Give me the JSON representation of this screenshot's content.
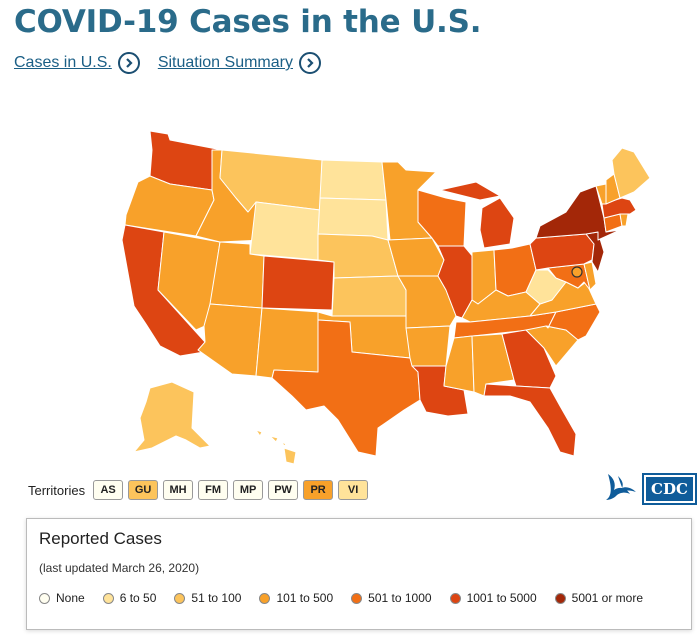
{
  "header": {
    "title": "COVID-19 Cases in the U.S.",
    "links": [
      {
        "label": "Cases in U.S."
      },
      {
        "label": "Situation Summary"
      }
    ]
  },
  "colors": {
    "none": "#fffef0",
    "c6_50": "#ffe39a",
    "c51_100": "#fcc45c",
    "c101_500": "#f8a12a",
    "c501_1000": "#f26f15",
    "c1001_5000": "#dd4512",
    "c5001_plus": "#a32708",
    "title": "#2a6b8a",
    "link": "#1b5f86",
    "cdc_blue": "#0f5c9a"
  },
  "map": {
    "states": [
      {
        "abbr": "WA",
        "bin": "c1001_5000"
      },
      {
        "abbr": "OR",
        "bin": "c101_500"
      },
      {
        "abbr": "CA",
        "bin": "c1001_5000"
      },
      {
        "abbr": "NV",
        "bin": "c101_500"
      },
      {
        "abbr": "ID",
        "bin": "c101_500"
      },
      {
        "abbr": "MT",
        "bin": "c51_100"
      },
      {
        "abbr": "WY",
        "bin": "c6_50"
      },
      {
        "abbr": "UT",
        "bin": "c101_500"
      },
      {
        "abbr": "AZ",
        "bin": "c101_500"
      },
      {
        "abbr": "CO",
        "bin": "c1001_5000"
      },
      {
        "abbr": "NM",
        "bin": "c101_500"
      },
      {
        "abbr": "ND",
        "bin": "c6_50"
      },
      {
        "abbr": "SD",
        "bin": "c6_50"
      },
      {
        "abbr": "NE",
        "bin": "c51_100"
      },
      {
        "abbr": "KS",
        "bin": "c51_100"
      },
      {
        "abbr": "OK",
        "bin": "c101_500"
      },
      {
        "abbr": "TX",
        "bin": "c501_1000"
      },
      {
        "abbr": "MN",
        "bin": "c101_500"
      },
      {
        "abbr": "IA",
        "bin": "c101_500"
      },
      {
        "abbr": "MO",
        "bin": "c101_500"
      },
      {
        "abbr": "AR",
        "bin": "c101_500"
      },
      {
        "abbr": "LA",
        "bin": "c1001_5000"
      },
      {
        "abbr": "WI",
        "bin": "c501_1000"
      },
      {
        "abbr": "IL",
        "bin": "c1001_5000"
      },
      {
        "abbr": "MI",
        "bin": "c1001_5000"
      },
      {
        "abbr": "IN",
        "bin": "c101_500"
      },
      {
        "abbr": "OH",
        "bin": "c501_1000"
      },
      {
        "abbr": "KY",
        "bin": "c101_500"
      },
      {
        "abbr": "TN",
        "bin": "c501_1000"
      },
      {
        "abbr": "MS",
        "bin": "c101_500"
      },
      {
        "abbr": "AL",
        "bin": "c101_500"
      },
      {
        "abbr": "GA",
        "bin": "c1001_5000"
      },
      {
        "abbr": "FL",
        "bin": "c1001_5000"
      },
      {
        "abbr": "SC",
        "bin": "c101_500"
      },
      {
        "abbr": "NC",
        "bin": "c501_1000"
      },
      {
        "abbr": "VA",
        "bin": "c101_500"
      },
      {
        "abbr": "WV",
        "bin": "c6_50"
      },
      {
        "abbr": "MD",
        "bin": "c501_1000"
      },
      {
        "abbr": "DE",
        "bin": "c101_500"
      },
      {
        "abbr": "PA",
        "bin": "c1001_5000"
      },
      {
        "abbr": "NJ",
        "bin": "c5001_plus"
      },
      {
        "abbr": "NY",
        "bin": "c5001_plus"
      },
      {
        "abbr": "CT",
        "bin": "c501_1000"
      },
      {
        "abbr": "RI",
        "bin": "c101_500"
      },
      {
        "abbr": "MA",
        "bin": "c1001_5000"
      },
      {
        "abbr": "VT",
        "bin": "c101_500"
      },
      {
        "abbr": "NH",
        "bin": "c101_500"
      },
      {
        "abbr": "ME",
        "bin": "c51_100"
      },
      {
        "abbr": "AK",
        "bin": "c51_100"
      },
      {
        "abbr": "HI",
        "bin": "c51_100"
      },
      {
        "abbr": "DC",
        "bin": "c101_500"
      }
    ]
  },
  "territories": {
    "label": "Territories",
    "items": [
      {
        "abbr": "AS",
        "bin": "none"
      },
      {
        "abbr": "GU",
        "bin": "c51_100"
      },
      {
        "abbr": "MH",
        "bin": "none"
      },
      {
        "abbr": "FM",
        "bin": "none"
      },
      {
        "abbr": "MP",
        "bin": "none"
      },
      {
        "abbr": "PW",
        "bin": "none"
      },
      {
        "abbr": "PR",
        "bin": "c101_500"
      },
      {
        "abbr": "VI",
        "bin": "c6_50"
      }
    ]
  },
  "logo": {
    "text": "CDC"
  },
  "legend": {
    "title": "Reported Cases",
    "updated": "(last updated March 26, 2020)",
    "items": [
      {
        "label": "None",
        "bin": "none"
      },
      {
        "label": "6 to 50",
        "bin": "c6_50"
      },
      {
        "label": "51 to 100",
        "bin": "c51_100"
      },
      {
        "label": "101 to 500",
        "bin": "c101_500"
      },
      {
        "label": "501 to 1000",
        "bin": "c501_1000"
      },
      {
        "label": "1001 to 5000",
        "bin": "c1001_5000"
      },
      {
        "label": "5001 or more",
        "bin": "c5001_plus"
      }
    ]
  }
}
